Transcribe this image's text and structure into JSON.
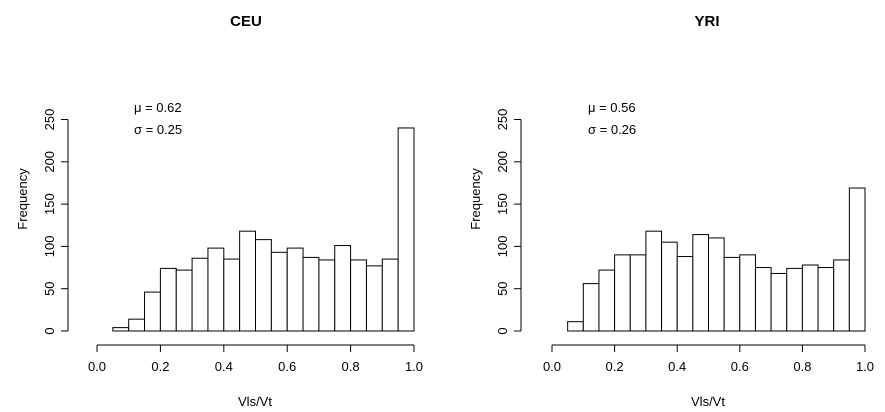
{
  "chart_data": [
    {
      "type": "bar",
      "title": "CEU",
      "xlabel": "Vls/Vt",
      "ylabel": "Frequency",
      "xlim": [
        0.0,
        1.0
      ],
      "ylim": [
        0,
        250
      ],
      "xticks": [
        "0.0",
        "0.2",
        "0.4",
        "0.6",
        "0.8",
        "1.0"
      ],
      "yticks": [
        "0",
        "50",
        "100",
        "150",
        "200",
        "250"
      ],
      "bin_width": 0.05,
      "bin_starts": [
        0.05,
        0.1,
        0.15,
        0.2,
        0.25,
        0.3,
        0.35,
        0.4,
        0.45,
        0.5,
        0.55,
        0.6,
        0.65,
        0.7,
        0.75,
        0.8,
        0.85,
        0.9,
        0.95
      ],
      "values": [
        4,
        14,
        46,
        74,
        72,
        86,
        98,
        85,
        118,
        108,
        93,
        98,
        87,
        84,
        101,
        84,
        77,
        85,
        240
      ],
      "annotation": {
        "mu": "μ = 0.62",
        "sigma": "σ = 0.25"
      }
    },
    {
      "type": "bar",
      "title": "YRI",
      "xlabel": "Vls/Vt",
      "ylabel": "Frequency",
      "xlim": [
        0.0,
        1.0
      ],
      "ylim": [
        0,
        250
      ],
      "xticks": [
        "0.0",
        "0.2",
        "0.4",
        "0.6",
        "0.8",
        "1.0"
      ],
      "yticks": [
        "0",
        "50",
        "100",
        "150",
        "200",
        "250"
      ],
      "bin_width": 0.05,
      "bin_starts": [
        0.05,
        0.1,
        0.15,
        0.2,
        0.25,
        0.3,
        0.35,
        0.4,
        0.45,
        0.5,
        0.55,
        0.6,
        0.65,
        0.7,
        0.75,
        0.8,
        0.85,
        0.9,
        0.95
      ],
      "values": [
        11,
        56,
        72,
        90,
        90,
        118,
        105,
        88,
        114,
        110,
        87,
        90,
        75,
        68,
        74,
        78,
        75,
        84,
        169
      ],
      "annotation": {
        "mu": "μ = 0.56",
        "sigma": "σ = 0.26"
      }
    }
  ]
}
